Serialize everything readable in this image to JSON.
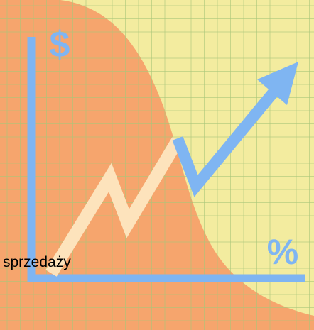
{
  "illustration": {
    "symbols": [
      "$",
      "%"
    ],
    "caption": "sprzedaży"
  }
}
